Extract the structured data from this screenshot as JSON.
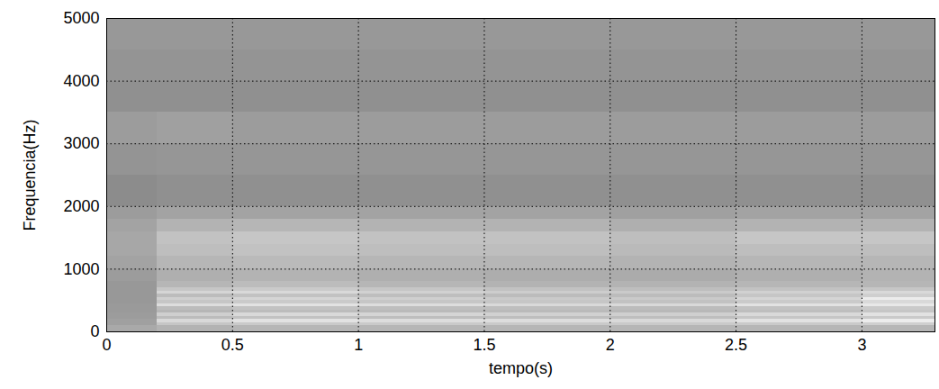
{
  "chart_data": {
    "type": "heatmap",
    "xlabel": "tempo(s)",
    "ylabel": "Frequencia(Hz)",
    "xlim": [
      0,
      3.29
    ],
    "ylim": [
      0,
      5000
    ],
    "xticks": [
      0,
      0.5,
      1,
      1.5,
      2,
      2.5,
      3
    ],
    "yticks": [
      0,
      1000,
      2000,
      3000,
      4000,
      5000
    ],
    "grid": true,
    "zlim": [
      0,
      100
    ],
    "time_bins": [
      0,
      0.2,
      0.5,
      1.0,
      1.5,
      2.0,
      2.5,
      3.0,
      3.29
    ],
    "freq_bins": [
      0,
      100,
      150,
      200,
      250,
      300,
      350,
      400,
      450,
      500,
      550,
      600,
      650,
      700,
      800,
      1000,
      1200,
      1400,
      1600,
      1800,
      2000,
      2500,
      3000,
      3500,
      4000,
      4500,
      5000
    ],
    "cells": [
      [
        55,
        60,
        62,
        62,
        62,
        62,
        62,
        62
      ],
      [
        50,
        70,
        72,
        72,
        72,
        72,
        72,
        75
      ],
      [
        50,
        80,
        85,
        82,
        82,
        80,
        85,
        90
      ],
      [
        48,
        65,
        68,
        66,
        66,
        66,
        70,
        72
      ],
      [
        48,
        75,
        80,
        78,
        76,
        75,
        80,
        85
      ],
      [
        47,
        62,
        65,
        64,
        64,
        63,
        66,
        70
      ],
      [
        47,
        65,
        68,
        66,
        66,
        65,
        68,
        72
      ],
      [
        47,
        82,
        85,
        82,
        80,
        80,
        85,
        88
      ],
      [
        46,
        70,
        72,
        70,
        70,
        68,
        72,
        80
      ],
      [
        46,
        75,
        78,
        75,
        72,
        72,
        78,
        90
      ],
      [
        46,
        65,
        68,
        66,
        65,
        65,
        70,
        75
      ],
      [
        46,
        78,
        80,
        76,
        74,
        72,
        76,
        80
      ],
      [
        46,
        70,
        72,
        70,
        68,
        66,
        68,
        70
      ],
      [
        46,
        62,
        65,
        62,
        60,
        60,
        62,
        62
      ],
      [
        48,
        58,
        60,
        58,
        57,
        56,
        58,
        60
      ],
      [
        52,
        62,
        64,
        62,
        62,
        60,
        62,
        62
      ],
      [
        54,
        66,
        68,
        66,
        66,
        64,
        66,
        66
      ],
      [
        54,
        68,
        70,
        68,
        68,
        66,
        70,
        70
      ],
      [
        52,
        60,
        62,
        60,
        60,
        58,
        60,
        60
      ],
      [
        48,
        52,
        52,
        52,
        52,
        50,
        52,
        52
      ],
      [
        40,
        42,
        42,
        42,
        42,
        42,
        42,
        42
      ],
      [
        44,
        45,
        45,
        45,
        45,
        45,
        45,
        45
      ],
      [
        48,
        50,
        48,
        48,
        48,
        48,
        48,
        48
      ],
      [
        42,
        42,
        42,
        42,
        42,
        42,
        42,
        42
      ],
      [
        44,
        44,
        44,
        44,
        44,
        44,
        44,
        44
      ],
      [
        46,
        46,
        46,
        46,
        46,
        46,
        46,
        46
      ]
    ]
  }
}
